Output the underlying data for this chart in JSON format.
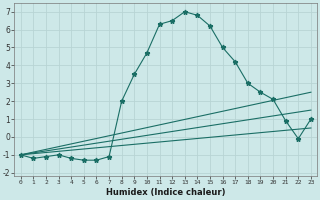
{
  "xlabel": "Humidex (Indice chaleur)",
  "ylabel": "",
  "bg_color": "#cde8e8",
  "grid_color": "#b8d4d4",
  "line_color": "#1a6e65",
  "xlim": [
    -0.5,
    23.5
  ],
  "ylim": [
    -2.2,
    7.5
  ],
  "xticks": [
    0,
    1,
    2,
    3,
    4,
    5,
    6,
    7,
    8,
    9,
    10,
    11,
    12,
    13,
    14,
    15,
    16,
    17,
    18,
    19,
    20,
    21,
    22,
    23
  ],
  "yticks": [
    -2,
    -1,
    0,
    1,
    2,
    3,
    4,
    5,
    6,
    7
  ],
  "series": [
    [
      0,
      -1.0
    ],
    [
      1,
      -1.2
    ],
    [
      2,
      -1.1
    ],
    [
      3,
      -1.0
    ],
    [
      4,
      -1.2
    ],
    [
      5,
      -1.3
    ],
    [
      6,
      -1.3
    ],
    [
      7,
      -1.1
    ],
    [
      8,
      2.0
    ],
    [
      9,
      3.5
    ],
    [
      10,
      4.7
    ],
    [
      11,
      6.3
    ],
    [
      12,
      6.5
    ],
    [
      13,
      7.0
    ],
    [
      14,
      6.8
    ],
    [
      15,
      6.2
    ],
    [
      16,
      5.0
    ],
    [
      17,
      4.2
    ],
    [
      18,
      3.0
    ],
    [
      19,
      2.5
    ],
    [
      20,
      2.1
    ],
    [
      21,
      0.9
    ],
    [
      22,
      -0.1
    ],
    [
      23,
      1.0
    ]
  ],
  "line2": [
    [
      0,
      -1.0
    ],
    [
      23,
      2.5
    ]
  ],
  "line3": [
    [
      0,
      -1.0
    ],
    [
      23,
      1.5
    ]
  ],
  "line4": [
    [
      0,
      -1.0
    ],
    [
      23,
      0.5
    ]
  ]
}
